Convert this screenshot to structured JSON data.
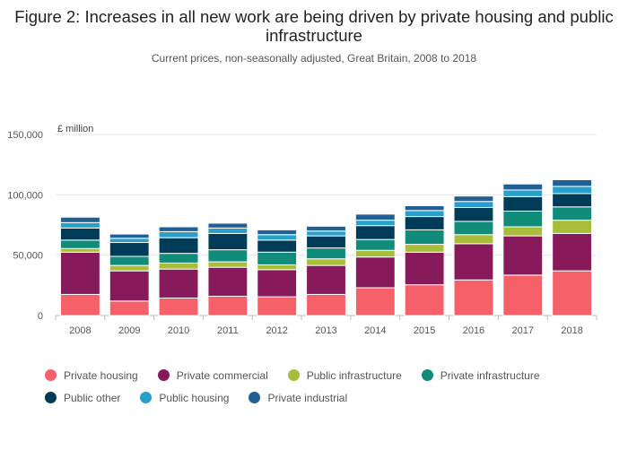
{
  "header": {
    "title": "Figure 2: Increases in all new work are being driven by private housing and public infrastructure",
    "subtitle": "Current prices, non-seasonally adjusted, Great Britain, 2008 to 2018"
  },
  "chart_data": {
    "type": "bar",
    "stacked": true,
    "unit_label": "£ million",
    "categories": [
      "2008",
      "2009",
      "2010",
      "2011",
      "2012",
      "2013",
      "2014",
      "2015",
      "2016",
      "2017",
      "2018"
    ],
    "ylim": [
      0,
      150000
    ],
    "yticks": [
      0,
      50000,
      100000,
      150000
    ],
    "ytick_labels": [
      "0",
      "50,000",
      "100,000",
      "150,000"
    ],
    "grid": true,
    "legend_position": "bottom",
    "series": [
      {
        "name": "Private housing",
        "color": "#f66068",
        "values": [
          17500,
          12000,
          14500,
          16000,
          15500,
          17500,
          23000,
          25500,
          29500,
          33500,
          37000
        ]
      },
      {
        "name": "Private commercial",
        "color": "#871a5b",
        "values": [
          35000,
          25000,
          24000,
          24000,
          22500,
          24000,
          25500,
          27000,
          30000,
          32500,
          31000
        ]
      },
      {
        "name": "Public infrastructure",
        "color": "#a8bd3a",
        "values": [
          3000,
          4500,
          5000,
          4500,
          4000,
          5500,
          5500,
          6500,
          7500,
          7500,
          11000
        ]
      },
      {
        "name": "Private infrastructure",
        "color": "#118c7b",
        "values": [
          7000,
          7500,
          8000,
          10000,
          10500,
          9000,
          9000,
          12000,
          11000,
          13000,
          11000
        ]
      },
      {
        "name": "Public other",
        "color": "#003c57",
        "values": [
          10000,
          11500,
          13000,
          13500,
          10000,
          10000,
          11500,
          11000,
          11500,
          12000,
          11000
        ]
      },
      {
        "name": "Public housing",
        "color": "#27a0cc",
        "values": [
          4500,
          3500,
          5000,
          4500,
          4500,
          4000,
          4500,
          5000,
          5000,
          5500,
          6000
        ]
      },
      {
        "name": "Private industrial",
        "color": "#206095",
        "values": [
          4500,
          3500,
          4000,
          4000,
          4000,
          4000,
          5000,
          4000,
          4500,
          5000,
          5500
        ]
      }
    ]
  }
}
